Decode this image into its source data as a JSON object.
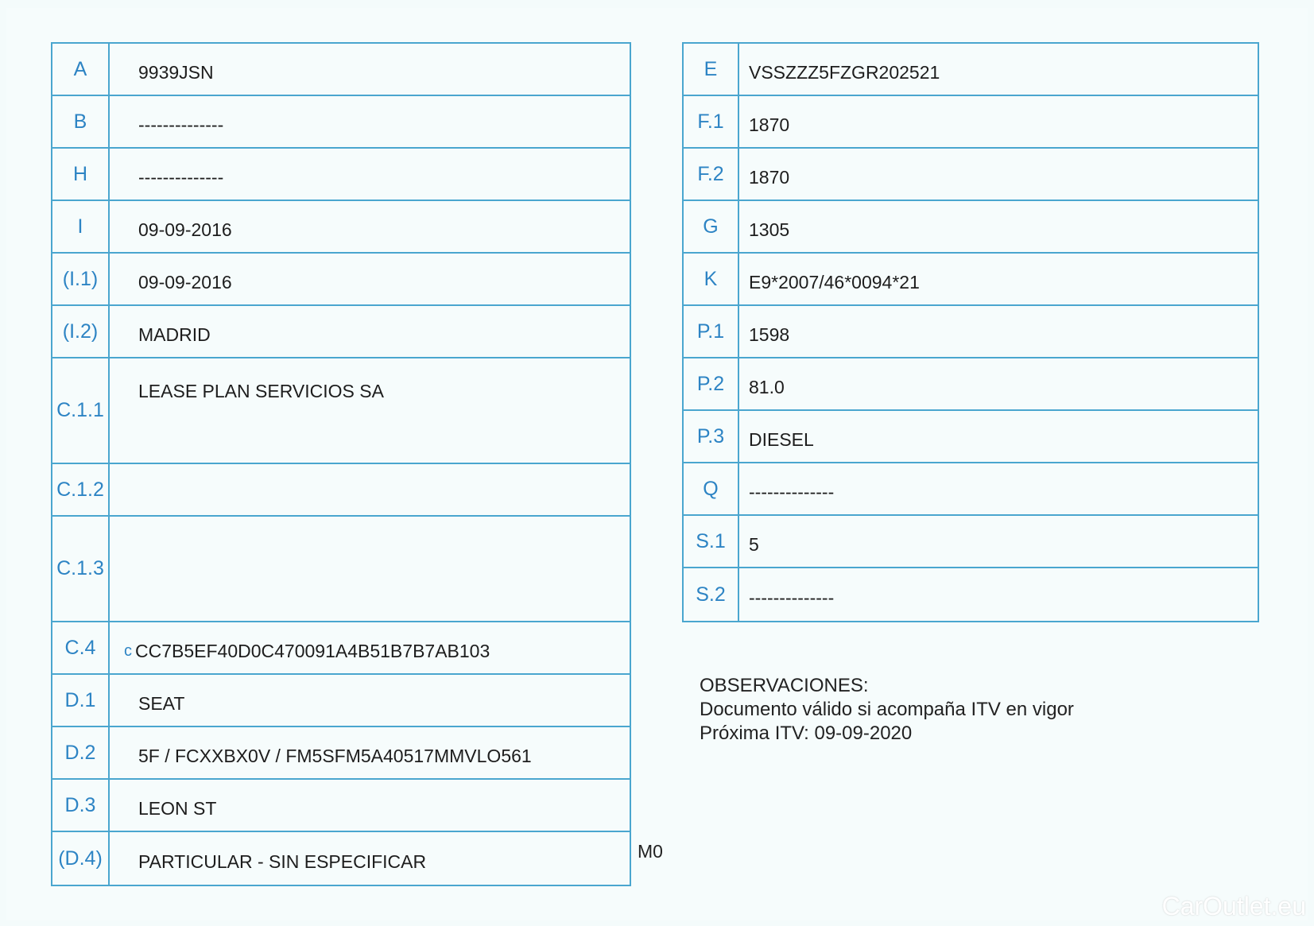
{
  "left_table": [
    {
      "label": "A",
      "value": "9939JSN"
    },
    {
      "label": "B",
      "value": "--------------"
    },
    {
      "label": "H",
      "value": "--------------"
    },
    {
      "label": "I",
      "value": "09-09-2016"
    },
    {
      "label": "(I.1)",
      "value": "09-09-2016"
    },
    {
      "label": "(I.2)",
      "value": "MADRID"
    },
    {
      "label": "C.1.1",
      "value": "LEASE PLAN SERVICIOS SA"
    },
    {
      "label": "C.1.2",
      "value": ""
    },
    {
      "label": "C.1.3",
      "value": ""
    },
    {
      "label": "C.4",
      "prefix": "c",
      "value": "CC7B5EF40D0C470091A4B51B7B7AB103"
    },
    {
      "label": "D.1",
      "value": "SEAT"
    },
    {
      "label": "D.2",
      "value": "5F / FCXXBX0V / FM5SFM5A40517MMVLO561"
    },
    {
      "label": "D.3",
      "value": "LEON ST"
    },
    {
      "label": "(D.4)",
      "value": "PARTICULAR - SIN ESPECIFICAR"
    }
  ],
  "right_table": [
    {
      "label": "E",
      "value": "VSSZZZ5FZGR202521"
    },
    {
      "label": "F.1",
      "value": "1870"
    },
    {
      "label": "F.2",
      "value": "1870"
    },
    {
      "label": "G",
      "value": "1305"
    },
    {
      "label": "K",
      "value": "E9*2007/46*0094*21"
    },
    {
      "label": "P.1",
      "value": "1598"
    },
    {
      "label": "P.2",
      "value": "81.0"
    },
    {
      "label": "P.3",
      "value": "DIESEL"
    },
    {
      "label": "Q",
      "value": "--------------"
    },
    {
      "label": "S.1",
      "value": "5"
    },
    {
      "label": "S.2",
      "value": "--------------"
    }
  ],
  "observations": {
    "heading": "OBSERVACIONES:",
    "lines": [
      "Documento válido si acompaña ITV en vigor",
      "Próxima ITV: 09-09-2020"
    ]
  },
  "mark": "M0",
  "watermark": "CarOutlet.eu",
  "colors": {
    "label": "#2d84c4",
    "border": "#4aa6cf",
    "background": "#f4fbfb"
  }
}
